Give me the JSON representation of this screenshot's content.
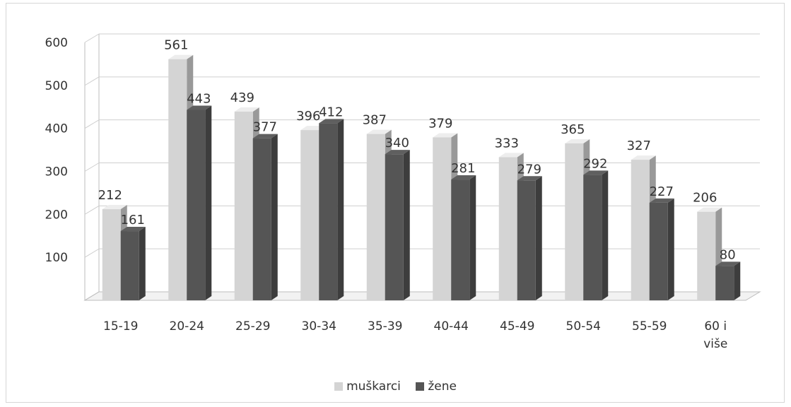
{
  "chart_data": {
    "type": "bar",
    "title": "",
    "xlabel": "",
    "ylabel": "",
    "ylim": [
      0,
      600
    ],
    "yticks": [
      "100",
      "200",
      "300",
      "400",
      "500",
      "600"
    ],
    "grid": true,
    "legend_position": "bottom",
    "categories": [
      "15-19",
      "20-24",
      "25-29",
      "30-34",
      "35-39",
      "40-44",
      "45-49",
      "50-54",
      "55-59",
      "60 i više"
    ],
    "category_lines": [
      [
        "15-19"
      ],
      [
        "20-24"
      ],
      [
        "25-29"
      ],
      [
        "30-34"
      ],
      [
        "35-39"
      ],
      [
        "40-44"
      ],
      [
        "45-49"
      ],
      [
        "50-54"
      ],
      [
        "55-59"
      ],
      [
        "60 i",
        "više"
      ]
    ],
    "series": [
      {
        "name": "muškarci",
        "color": "#d4d4d4",
        "values": [
          212,
          561,
          439,
          396,
          387,
          379,
          333,
          365,
          327,
          206
        ]
      },
      {
        "name": "žene",
        "color": "#555555",
        "values": [
          161,
          443,
          377,
          412,
          340,
          281,
          279,
          292,
          227,
          80
        ]
      }
    ]
  },
  "legend": {
    "men_label": "muškarci",
    "women_label": "žene"
  }
}
